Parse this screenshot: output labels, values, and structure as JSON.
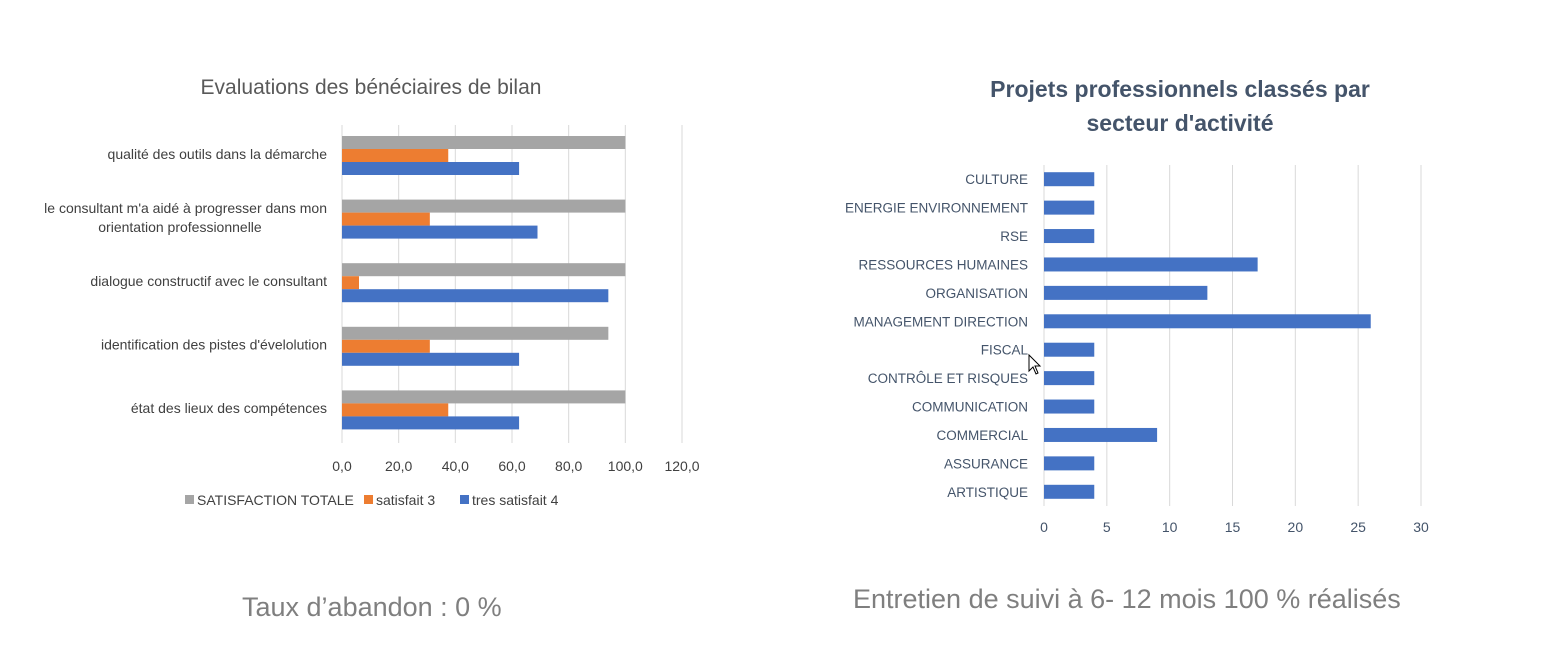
{
  "chart_data": [
    {
      "type": "bar",
      "orientation": "horizontal",
      "title": "Evaluations des bénéciaires de bilan",
      "categories": [
        "qualité des outils dans la démarche",
        "le consultant m'a  aidé à progresser dans mon orientation professionnelle",
        "dialogue constructif avec le consultant",
        "identification des pistes d'évelolution",
        "état des lieux des compétences"
      ],
      "category_lines": [
        [
          "qualité des outils dans la démarche"
        ],
        [
          "le consultant m'a  aidé à progresser dans mon",
          "orientation professionnelle"
        ],
        [
          "dialogue constructif avec le consultant"
        ],
        [
          "identification des pistes d'évelolution"
        ],
        [
          "état des lieux des compétences"
        ]
      ],
      "series": [
        {
          "name": "SATISFACTION TOTALE",
          "color": "#a5a5a5",
          "values": [
            100,
            100,
            100,
            94,
            100
          ]
        },
        {
          "name": "satisfait 3",
          "color": "#ed7d31",
          "values": [
            37.5,
            31,
            6,
            31,
            37.5
          ]
        },
        {
          "name": "tres satisfait 4",
          "color": "#4472c4",
          "values": [
            62.5,
            69,
            94,
            62.5,
            62.5
          ]
        }
      ],
      "xlim": [
        0,
        120
      ],
      "ticks": [
        "0,0",
        "20,0",
        "40,0",
        "60,0",
        "80,0",
        "100,0",
        "120,0"
      ],
      "grid": true,
      "legend_position": "bottom"
    },
    {
      "type": "bar",
      "orientation": "horizontal",
      "title_lines": [
        "Projets professionnels classés par",
        "secteur d'activité"
      ],
      "categories": [
        "CULTURE",
        "ENERGIE ENVIRONNEMENT",
        "RSE",
        "RESSOURCES HUMAINES",
        "ORGANISATION",
        "MANAGEMENT DIRECTION",
        "FISCAL",
        "CONTRÔLE ET RISQUES",
        "COMMUNICATION",
        "COMMERCIAL",
        "ASSURANCE",
        "ARTISTIQUE"
      ],
      "values": [
        4,
        4,
        4,
        17,
        13,
        26,
        4,
        4,
        4,
        9,
        4,
        4
      ],
      "color": "#4472c4",
      "xlim": [
        0,
        30
      ],
      "ticks": [
        "0",
        "5",
        "10",
        "15",
        "20",
        "25",
        "30"
      ],
      "grid": true
    }
  ],
  "captions": {
    "left": "Taux d’abandon : 0 %",
    "right": "Entretien de suivi à 6- 12 mois 100 % réalisés"
  },
  "colors": {
    "grid": "#d9d9d9",
    "label": "#404040",
    "label_right": "#44546a",
    "title_right": "#44546a"
  }
}
